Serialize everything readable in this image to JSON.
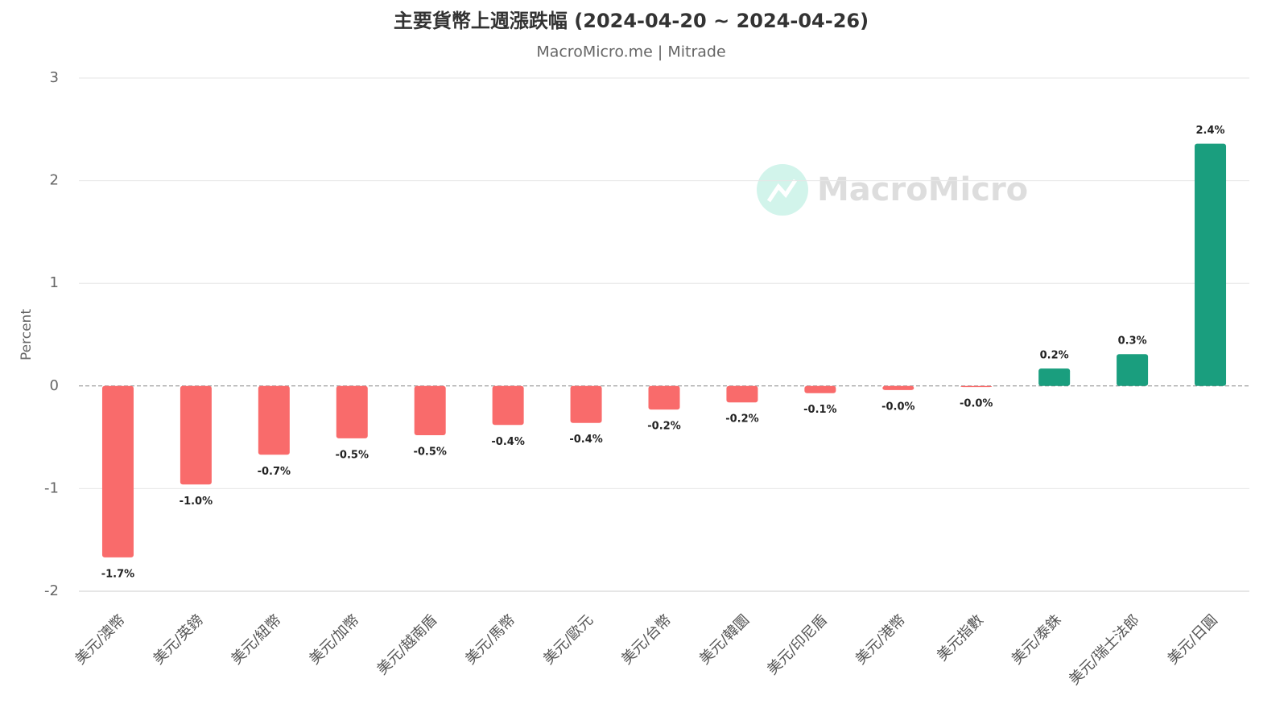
{
  "chart_data": {
    "type": "bar",
    "title": "主要貨幣上週漲跌幅 (2024-04-20 ~ 2024-04-26)",
    "subtitle": "MacroMicro.me | Mitrade",
    "watermark": "MacroMicro",
    "y_label": "Percent",
    "categories": [
      "美元/澳幣",
      "美元/英鎊",
      "美元/紐幣",
      "美元/加幣",
      "美元/越南盾",
      "美元/馬幣",
      "美元/歐元",
      "美元/台幣",
      "美元/韓圜",
      "美元/印尼盾",
      "美元/港幣",
      "美元指數",
      "美元/泰銖",
      "美元/瑞士法郎",
      "美元/日圓"
    ],
    "values": [
      -1.67,
      -0.96,
      -0.67,
      -0.51,
      -0.48,
      -0.38,
      -0.36,
      -0.23,
      -0.16,
      -0.07,
      -0.04,
      -0.01,
      0.17,
      0.31,
      2.36
    ],
    "value_labels": [
      "-1.7%",
      "-1.0%",
      "-0.7%",
      "-0.5%",
      "-0.5%",
      "-0.4%",
      "-0.4%",
      "-0.2%",
      "-0.2%",
      "-0.1%",
      "-0.0%",
      "-0.0%",
      "0.2%",
      "0.3%",
      "2.4%"
    ],
    "positive_color": "#1a9e7e",
    "negative_color": "#f96b6b",
    "ylim": [
      -2,
      3
    ],
    "yticks": [
      -2,
      -1,
      0,
      1,
      2,
      3
    ],
    "grid": true
  }
}
